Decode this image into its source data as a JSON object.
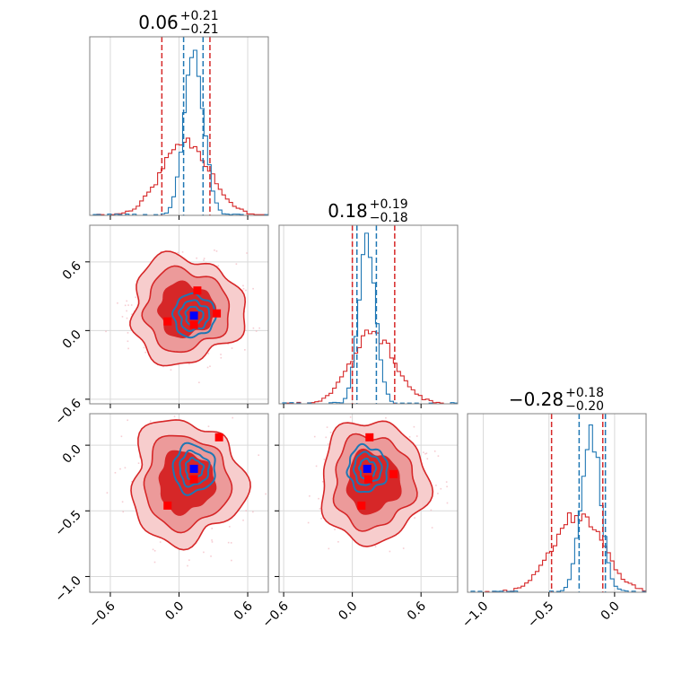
{
  "chart_data": {
    "type": "corner",
    "parameters": 3,
    "colors": {
      "red": "#d62728",
      "red_mid": "#ec9a9a",
      "red_light": "#f7cdcd",
      "blue": "#1f77b4",
      "marker_blue": "#0000ff",
      "marker_red": "#ff0000",
      "grid": "#d9d9d9",
      "frame": "#808080"
    },
    "titles": [
      {
        "median": "0.06",
        "plus": "+0.21",
        "minus": "−0.21"
      },
      {
        "median": "0.18",
        "plus": "+0.19",
        "minus": "−0.18"
      },
      {
        "median": "−0.28",
        "plus": "+0.18",
        "minus": "−0.20"
      }
    ],
    "ranges": [
      [
        -0.78,
        0.78
      ],
      [
        -0.64,
        0.92
      ],
      [
        -1.12,
        0.24
      ]
    ],
    "ticks": [
      [
        -0.6,
        0.0,
        0.6
      ],
      [
        -0.6,
        0.0,
        0.6
      ],
      [
        -1.0,
        -0.5,
        0.0
      ]
    ],
    "tick_labels": [
      [
        "−0.6",
        "0.0",
        "0.6"
      ],
      [
        "−0.6",
        "0.0",
        "0.6"
      ],
      [
        "−1.0",
        "−0.5",
        "0.0"
      ]
    ],
    "marginals": [
      {
        "red_quantiles": [
          -0.15,
          0.27
        ],
        "blue_quantiles": [
          0.04,
          0.21
        ],
        "red_hist": {
          "mean": 0.06,
          "sd": 0.21,
          "peak": 0.42
        },
        "blue_hist": {
          "mean": 0.13,
          "sd": 0.085,
          "peak": 0.93
        }
      },
      {
        "red_quantiles": [
          0.0,
          0.37
        ],
        "blue_quantiles": [
          0.04,
          0.21
        ],
        "red_hist": {
          "mean": 0.18,
          "sd": 0.19,
          "peak": 0.4
        },
        "blue_hist": {
          "mean": 0.13,
          "sd": 0.075,
          "peak": 0.9
        }
      },
      {
        "red_quantiles": [
          -0.48,
          -0.09
        ],
        "blue_quantiles": [
          -0.27,
          -0.07
        ],
        "red_hist": {
          "mean": -0.28,
          "sd": 0.19,
          "peak": 0.43
        },
        "blue_hist": {
          "mean": -0.18,
          "sd": 0.075,
          "peak": 0.9
        }
      }
    ],
    "joint": [
      {
        "row": 1,
        "col": 0,
        "red_center": [
          0.06,
          0.18
        ],
        "red_sd": [
          0.2,
          0.19
        ],
        "blue_center": [
          0.13,
          0.13
        ],
        "blue_sd": [
          0.08,
          0.08
        ],
        "blue_marker": [
          0.13,
          0.13
        ],
        "red_markers": [
          [
            0.16,
            0.35
          ],
          [
            -0.1,
            0.08
          ],
          [
            0.33,
            0.15
          ],
          [
            0.13,
            0.05
          ]
        ]
      },
      {
        "row": 2,
        "col": 0,
        "red_center": [
          0.06,
          -0.28
        ],
        "red_sd": [
          0.2,
          0.19
        ],
        "blue_center": [
          0.13,
          -0.18
        ],
        "blue_sd": [
          0.08,
          0.08
        ],
        "blue_marker": [
          0.13,
          -0.18
        ],
        "red_markers": [
          [
            0.35,
            0.06
          ],
          [
            -0.1,
            -0.46
          ],
          [
            0.13,
            -0.26
          ]
        ]
      },
      {
        "row": 2,
        "col": 1,
        "red_center": [
          0.18,
          -0.28
        ],
        "red_sd": [
          0.19,
          0.19
        ],
        "blue_center": [
          0.13,
          -0.18
        ],
        "blue_sd": [
          0.075,
          0.075
        ],
        "blue_marker": [
          0.13,
          -0.18
        ],
        "red_markers": [
          [
            0.15,
            0.06
          ],
          [
            0.08,
            -0.46
          ],
          [
            0.36,
            -0.22
          ],
          [
            0.14,
            -0.26
          ]
        ]
      }
    ]
  }
}
